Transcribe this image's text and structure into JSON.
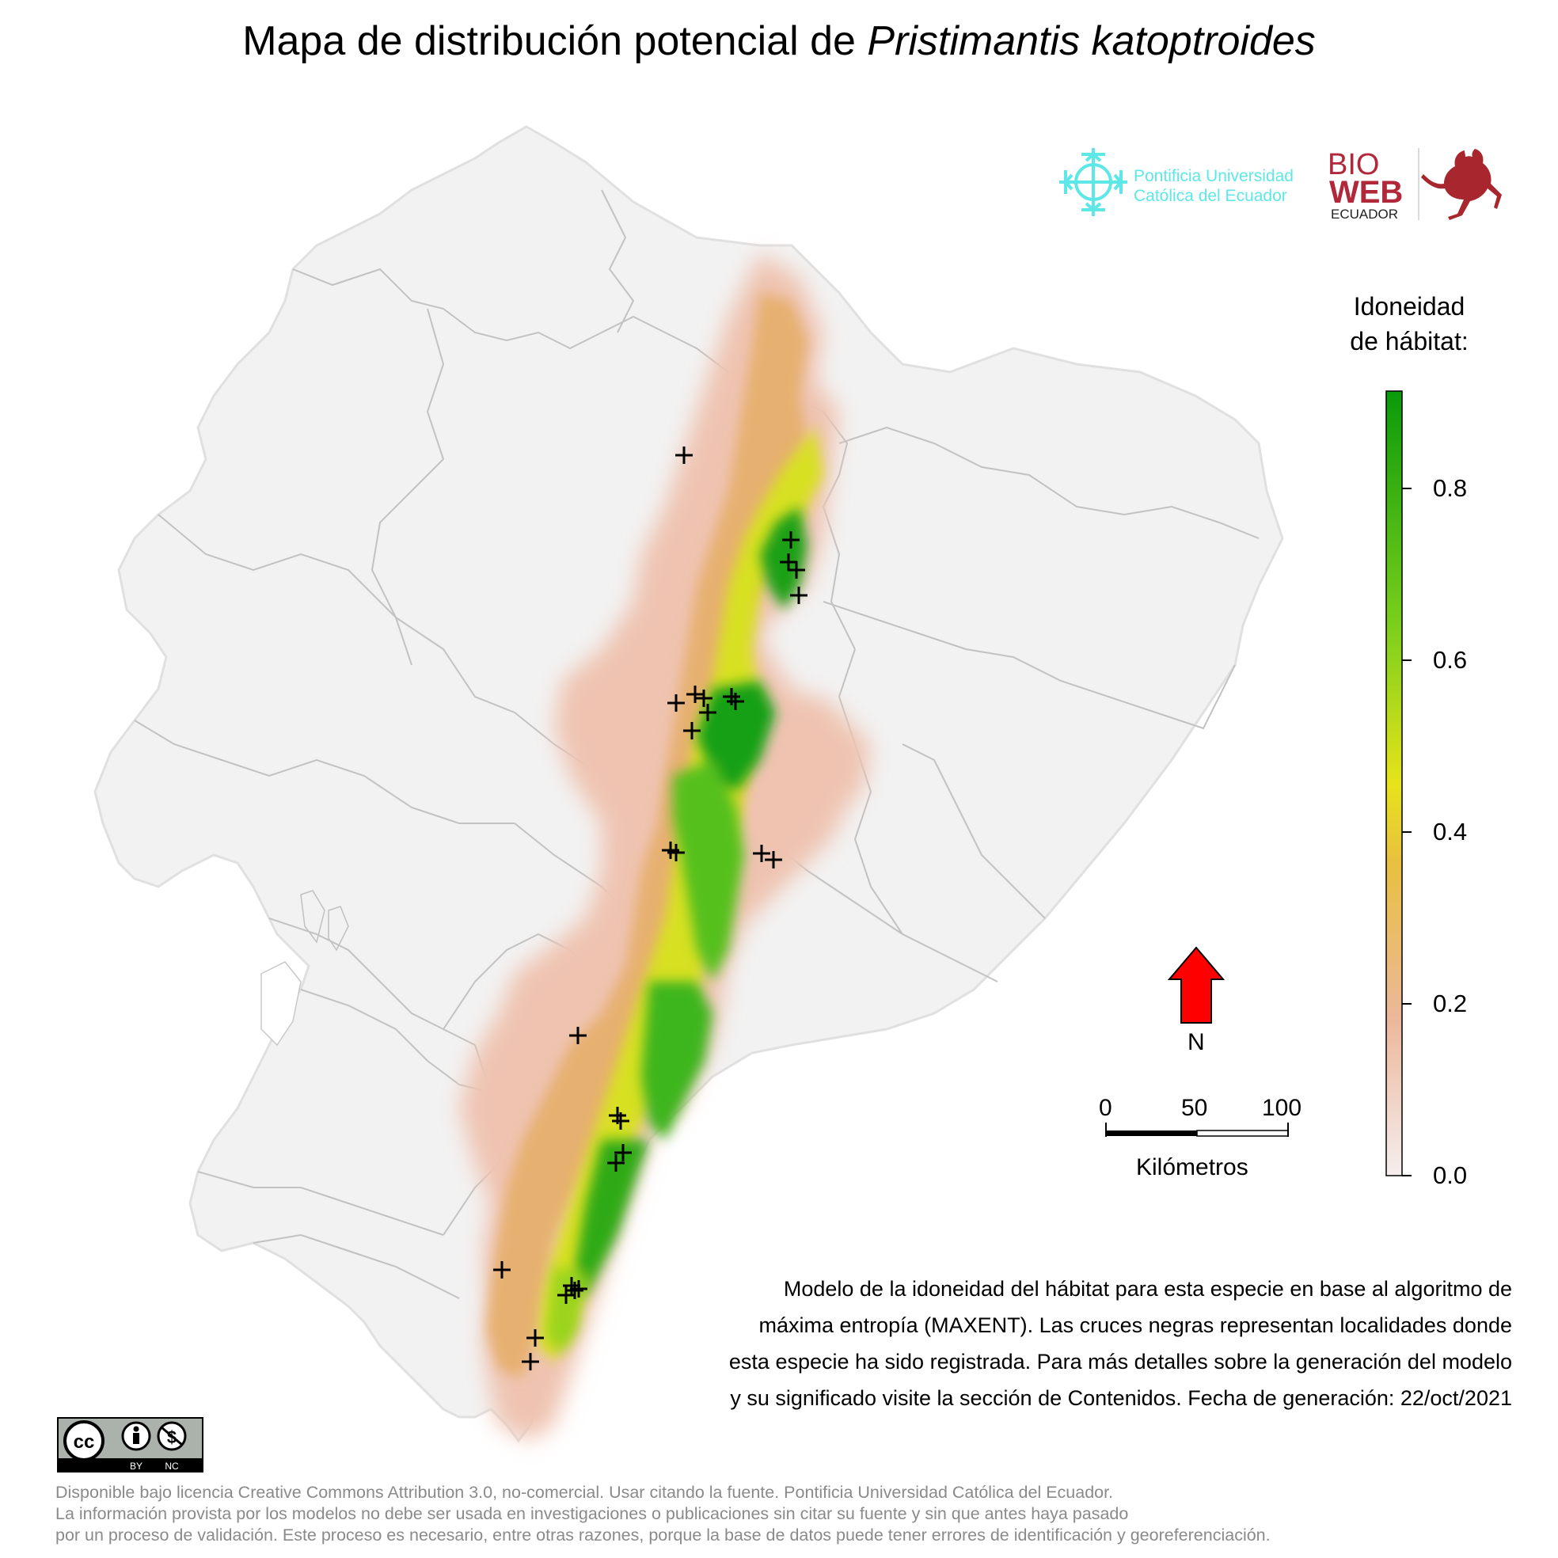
{
  "title": {
    "prefix": "Mapa de distribución potencial de",
    "species": "Pristimantis katoptroides"
  },
  "logos": {
    "puce_line1": "Pontificia Universidad",
    "puce_line2": "Católica del Ecuador",
    "bioweb_top": "BIO",
    "bioweb_mid": "WEB",
    "bioweb_bottom": "ECUADOR"
  },
  "legend": {
    "title_line1": "Idoneidad",
    "title_line2": "de hábitat:",
    "ticks": [
      "0.8",
      "0.6",
      "0.4",
      "0.2",
      "0.0"
    ],
    "colors": {
      "high": "#0a9a0a",
      "mid": "#e6e31a",
      "low": "#e8b080",
      "zero": "#f5eeee"
    }
  },
  "north_arrow": {
    "label": "N",
    "color": "#ff0000"
  },
  "scale_bar": {
    "labels": [
      "0",
      "50",
      "100"
    ],
    "unit": "Kilómetros"
  },
  "caption": [
    "Modelo de la idoneidad del hábitat para esta especie en base al algoritmo de",
    "máxima entropía (MAXENT). Las cruces negras representan localidades donde",
    "esta especie ha sido registrada. Para más detalles sobre la generación del modelo",
    "y su significado visite la sección de Contenidos. Fecha de generación: 22/oct/2021"
  ],
  "cc_badge": {
    "by": "BY",
    "nc": "NC"
  },
  "license_text": [
    "Disponible bajo licencia Creative Commons Attribution 3.0, no-comercial. Usar citando la fuente. Pontificia Universidad Católica del Ecuador.",
    "La información provista por los modelos no debe ser usada en investigaciones o publicaciones sin citar su fuente y sin que antes haya pasado",
    "por un proceso de validación. Este proceso es necesario, entre otras razones, porque la base de datos puede tener errores de identificación y georeferenciación."
  ],
  "occurrence_marker_count": 28
}
